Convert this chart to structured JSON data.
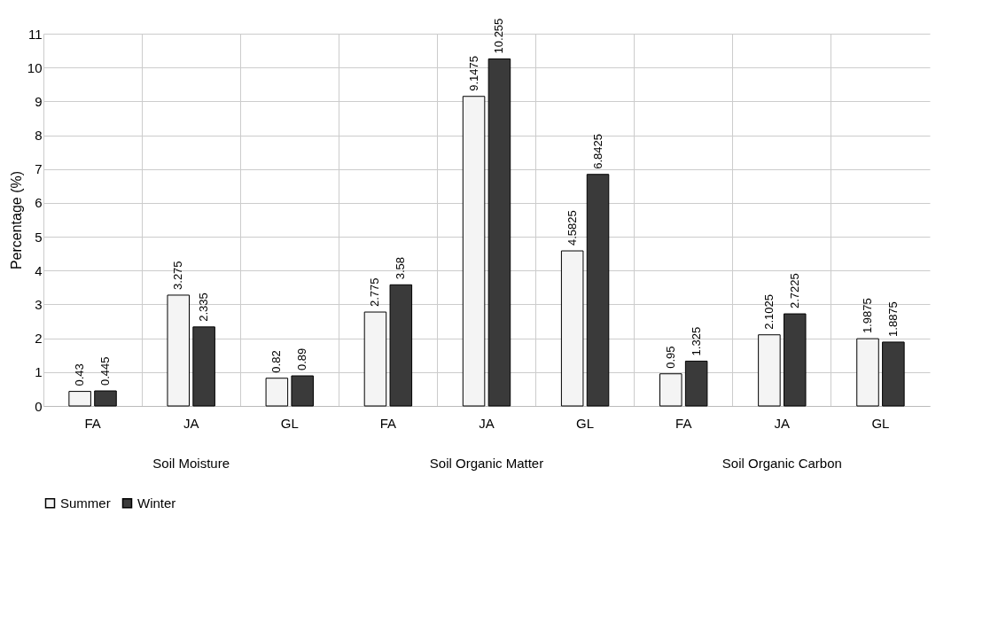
{
  "chart_data": {
    "type": "bar",
    "ylabel": "Percentage (%)",
    "categories": [
      "FA",
      "JA",
      "GL",
      "FA",
      "JA",
      "GL",
      "FA",
      "JA",
      "GL"
    ],
    "series": [
      {
        "name": "Summer",
        "color": "#f4f4f4",
        "values": [
          0.43,
          3.275,
          0.82,
          2.775,
          9.1475,
          4.5825,
          0.95,
          2.1025,
          1.9875
        ]
      },
      {
        "name": "Winter",
        "color": "#3a3a3a",
        "values": [
          0.445,
          2.335,
          0.89,
          3.58,
          10.255,
          6.8425,
          1.325,
          2.7225,
          1.8875
        ]
      }
    ],
    "annotations": [
      "Soil Moisture",
      "Soil Organic Matter",
      "Soil Organic Carbon"
    ],
    "ylim": [
      0,
      11
    ],
    "yticks": [
      0,
      1,
      2,
      3,
      4,
      5,
      6,
      7,
      8,
      9,
      10,
      11
    ],
    "grid": true,
    "legend": "bottom",
    "data_labels": true
  }
}
